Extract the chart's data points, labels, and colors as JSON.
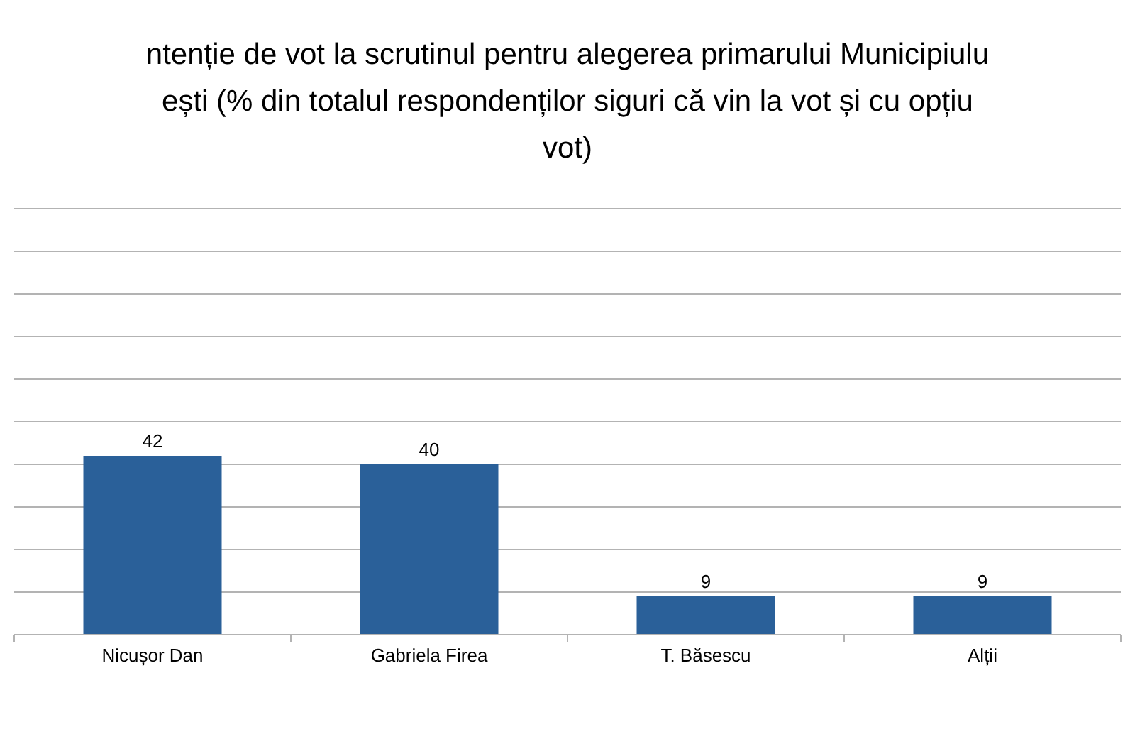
{
  "chart_data": {
    "type": "bar",
    "title": "ntenție de vot la scrutinul pentru alegerea primarului Municipiulu\nești (% din totalul respondenților siguri că vin la vot și cu opțiu\nvot)",
    "categories": [
      "Nicușor Dan",
      "Gabriela Firea",
      "T. Băsescu",
      "Alții"
    ],
    "values": [
      42,
      40,
      9,
      9
    ],
    "color": "#2a6099",
    "ylim": [
      0,
      100
    ],
    "yticks": [
      0,
      10,
      20,
      30,
      40,
      50,
      60,
      70,
      80,
      90,
      100
    ],
    "grid": "y",
    "tick_labels": "x",
    "data_labels": true
  }
}
